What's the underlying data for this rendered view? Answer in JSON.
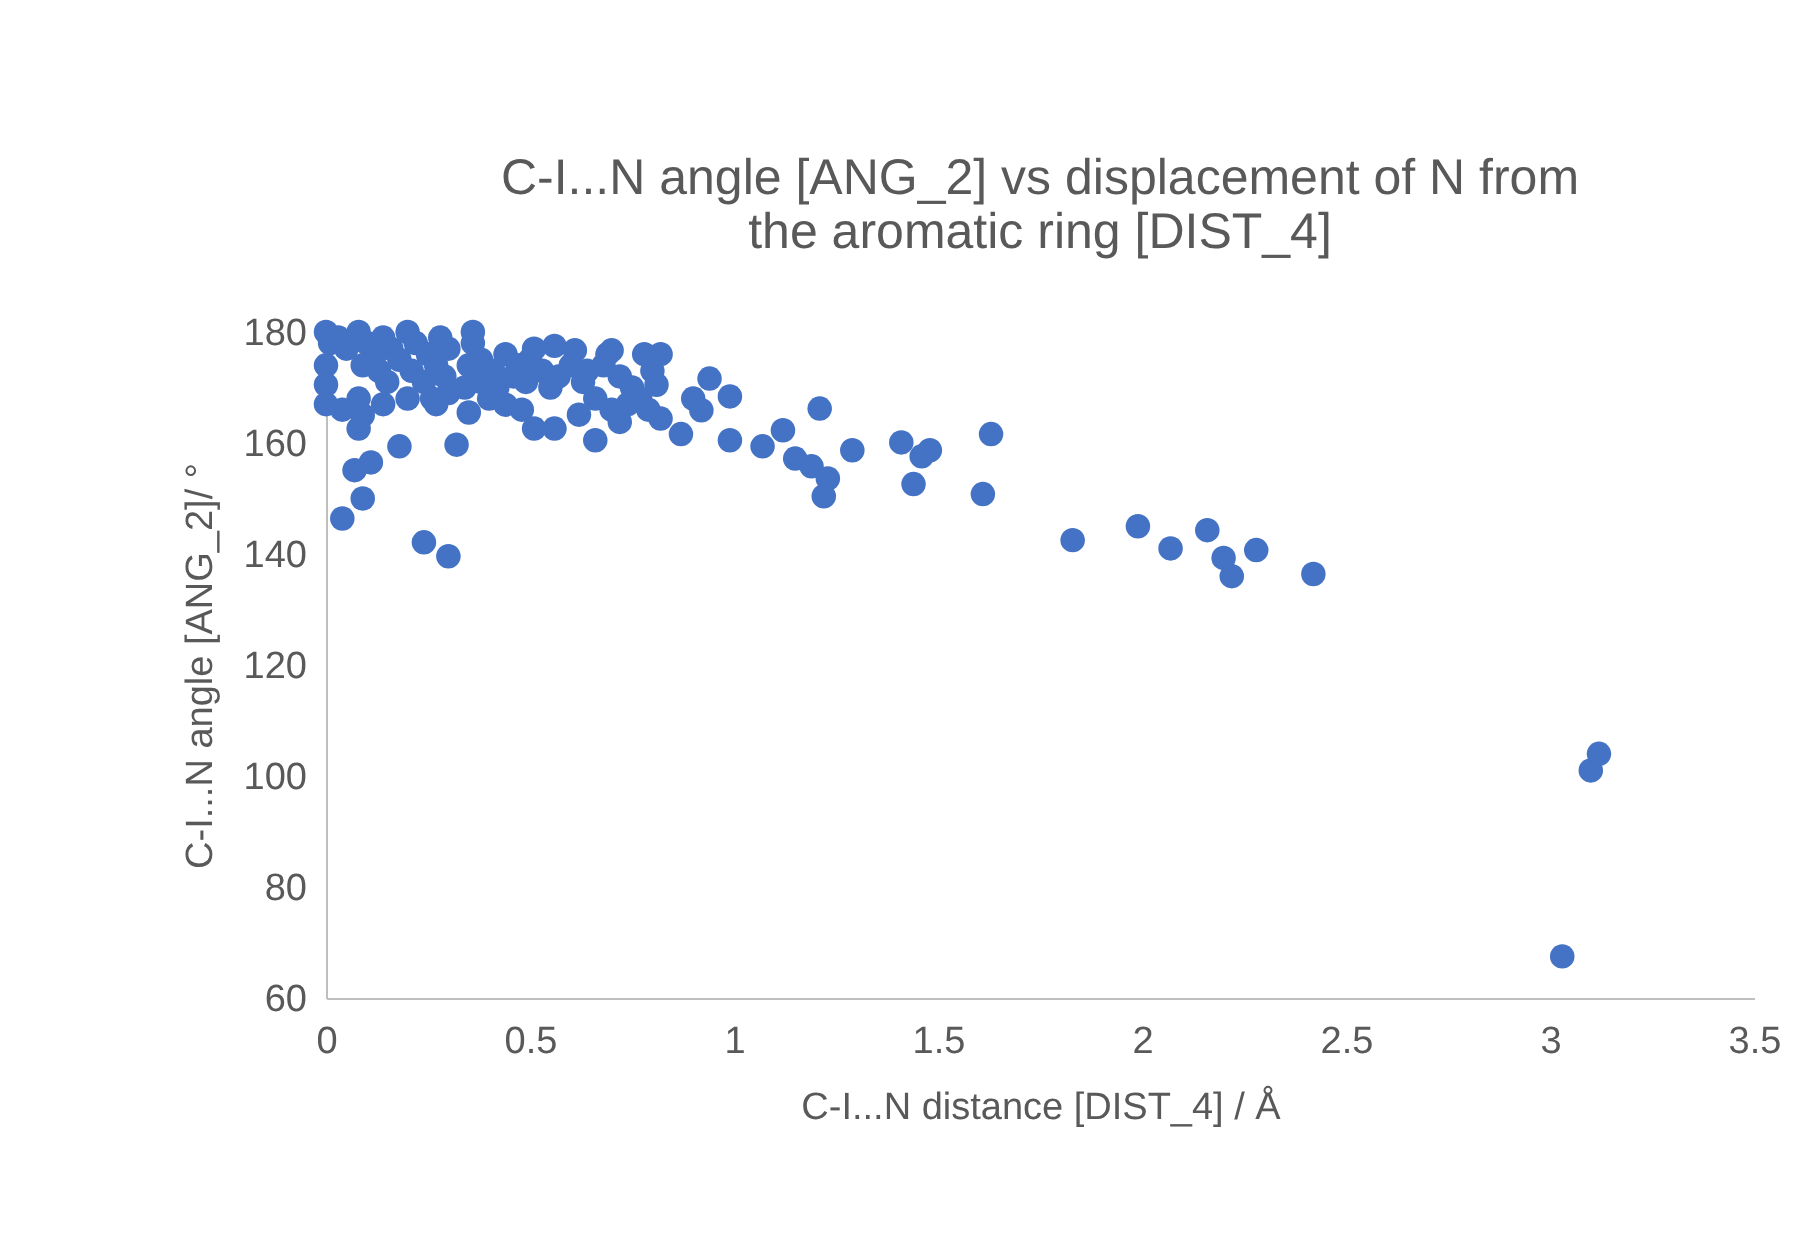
{
  "chart_data": {
    "type": "scatter",
    "title": "C-I...N angle [ANG_2] vs displacement of N from the aromatic ring [DIST_4]",
    "xlabel": "C-I...N distance [DIST_4] / Å",
    "ylabel": "C-I...N angle [ANG_2]/ °",
    "xlim": [
      0,
      3.5
    ],
    "ylim": [
      60,
      180
    ],
    "xticks": [
      0,
      0.5,
      1,
      1.5,
      2,
      2.5,
      3,
      3.5
    ],
    "yticks": [
      60,
      80,
      100,
      120,
      140,
      160,
      180
    ],
    "grid": false,
    "legend": false,
    "marker": "circle",
    "series": [
      {
        "color": "#4472c4",
        "x": [
          0.0,
          0.01,
          0.0,
          0.03,
          0.05,
          0.08,
          0.1,
          0.12,
          0.14,
          0.16,
          0.18,
          0.2,
          0.22,
          0.25,
          0.28,
          0.3,
          0.36,
          0.09,
          0.13,
          0.15,
          0.21,
          0.24,
          0.27,
          0.29,
          0.35,
          0.38,
          0.41,
          0.44,
          0.47,
          0.5,
          0.08,
          0.26,
          0.3,
          0.34,
          0.38,
          0.42,
          0.46,
          0.49,
          0.53,
          0.57,
          0.6,
          0.64,
          0.0,
          0.04,
          0.09,
          0.14,
          0.2,
          0.27,
          0.4,
          0.48,
          0.55,
          0.63,
          0.68,
          0.72,
          0.75,
          0.77,
          0.8,
          0.66,
          0.7,
          0.74,
          0.79,
          0.69,
          0.36,
          0.51,
          0.56,
          0.61,
          0.7,
          0.78,
          0.81,
          0.82,
          0.72,
          0.62,
          0.44,
          0.35,
          0.0,
          0.04,
          0.09,
          0.07,
          0.11,
          0.18,
          0.32,
          0.24,
          0.3,
          0.08,
          0.51,
          0.56,
          0.66,
          0.87,
          0.82,
          0.94,
          0.9,
          0.99,
          0.92,
          0.99,
          1.07,
          1.12,
          1.21,
          1.15,
          1.19,
          1.23,
          1.22,
          1.29,
          1.41,
          1.48,
          1.46,
          1.44,
          1.63,
          1.61,
          1.83,
          1.99,
          2.07,
          2.16,
          2.2,
          2.22,
          2.28,
          2.42,
          3.03,
          3.1,
          3.12
        ],
        "values": [
          180,
          178,
          174,
          179,
          177,
          180,
          178,
          176,
          179,
          177,
          175,
          180,
          178,
          176,
          179,
          177,
          178,
          174,
          173,
          171,
          173,
          171,
          174,
          172,
          174,
          175,
          173,
          176,
          174,
          175,
          168,
          168,
          169,
          170,
          171,
          170,
          172,
          171,
          173,
          172,
          174,
          173,
          170.5,
          166,
          165,
          167,
          168,
          167,
          168,
          166,
          170,
          171,
          174,
          172,
          170,
          168,
          173,
          168,
          166,
          167,
          166,
          176,
          180,
          177,
          177.5,
          176.7,
          176.7,
          176,
          170.5,
          164.4,
          163.8,
          165.1,
          166.9,
          165.5,
          167,
          146.4,
          150.0,
          155.1,
          156.5,
          159.4,
          159.7,
          142.1,
          139.6,
          162.6,
          162.6,
          162.6,
          160.5,
          161.6,
          176,
          171.6,
          168,
          168.4,
          165.9,
          160.5,
          159.4,
          162.3,
          166.2,
          157.2,
          155.8,
          153.6,
          150.4,
          158.7,
          160.1,
          158.7,
          157.6,
          152.6,
          161.6,
          150.8,
          142.5,
          145.0,
          141.0,
          144.3,
          139.3,
          136.0,
          140.7,
          136.4,
          67.5,
          101,
          104
        ]
      }
    ]
  }
}
